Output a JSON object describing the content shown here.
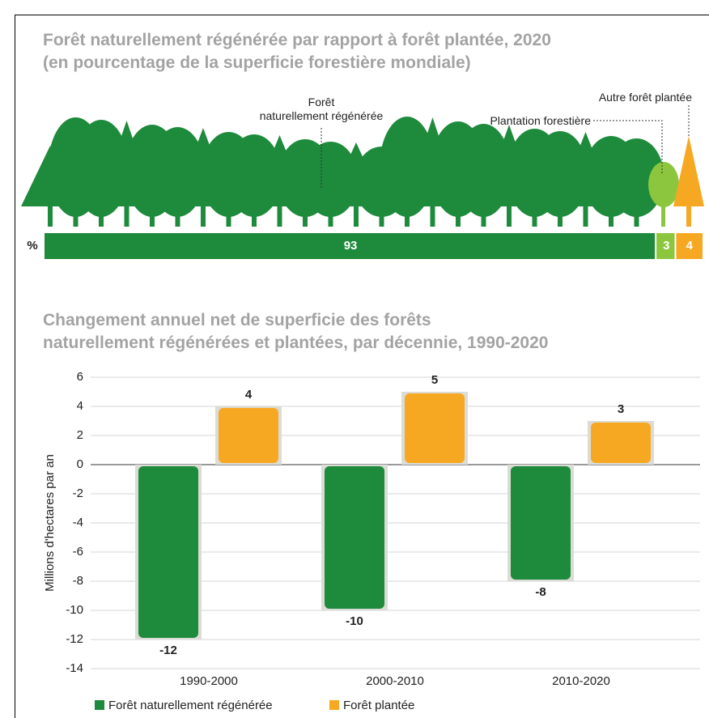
{
  "chart_data": [
    {
      "type": "bar",
      "orientation": "horizontal",
      "stacked": true,
      "title": "Forêt naturellement régénérée par rapport à forêt plantée, 2020",
      "subtitle": "(en pourcentage de la superficie forestière mondiale)",
      "axis_label": "%",
      "series": [
        {
          "name": "Forêt\nnaturellement régénérée",
          "color": "#1e8a3c",
          "values": [
            93
          ]
        },
        {
          "name": "Plantation forestière",
          "color": "#8cc63f",
          "values": [
            3
          ]
        },
        {
          "name": "Autre forêt plantée",
          "color": "#f7a823",
          "values": [
            4
          ]
        }
      ]
    },
    {
      "type": "bar",
      "title": "Changement annuel net de superficie des forêts\nnaturellement régénérées et plantées, par décennie, 1990-2020",
      "ylabel": "Millions d'hectares par an",
      "categories": [
        "1990-2000",
        "2000-2010",
        "2010-2020"
      ],
      "series": [
        {
          "name": "Forêt naturellement régénérée",
          "color": "#1e8a3c",
          "values": [
            -12,
            -10,
            -8
          ]
        },
        {
          "name": "Forêt plantée",
          "color": "#f7a823",
          "values": [
            4,
            5,
            3
          ]
        }
      ],
      "ylim": [
        -14,
        6
      ],
      "yticks": [
        -14,
        -12,
        -10,
        -8,
        -6,
        -4,
        -2,
        0,
        2,
        4,
        6
      ],
      "grid": true,
      "legend": "bottom"
    }
  ]
}
